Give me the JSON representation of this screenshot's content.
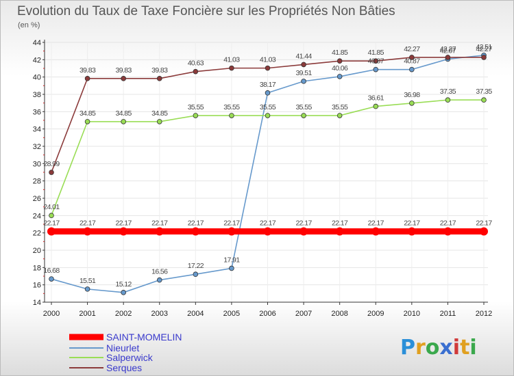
{
  "header": {
    "title": "Evolution du Taux de Taxe Foncière sur les Propriétés Non Bâties",
    "unit": "(en %)"
  },
  "logo": {
    "letters": [
      "P",
      "r",
      "o",
      "x",
      "i",
      "t",
      "i"
    ],
    "colors": [
      "#2a8fd8",
      "#e0a020",
      "#3aa84c",
      "#3a6fd0",
      "#d03a3a",
      "#e0a020",
      "#3aa84c"
    ]
  },
  "chart_data": {
    "type": "line",
    "title": "Evolution du Taux de Taxe Foncière sur les Propriétés Non Bâties",
    "ylabel": "(en %)",
    "xlabel": "",
    "ylim": [
      14,
      44
    ],
    "yticks": [
      14,
      16,
      18,
      20,
      22,
      24,
      26,
      28,
      30,
      32,
      34,
      36,
      38,
      40,
      42,
      44
    ],
    "x": [
      "2000",
      "2001",
      "2002",
      "2003",
      "2004",
      "2005",
      "2006",
      "2007",
      "2008",
      "2009",
      "2010",
      "2011",
      "2012"
    ],
    "legend_position": "bottom-left",
    "series": [
      {
        "name": "SAINT-MOMELIN",
        "color": "#ff0000",
        "labels": [
          "22.17",
          "22.17",
          "22.17",
          "22.17",
          "22.17",
          "22.17",
          "22.17",
          "22.17",
          "22.17",
          "22.17",
          "22.17",
          "22.17",
          "22.17"
        ],
        "values": [
          22.17,
          22.17,
          22.17,
          22.17,
          22.17,
          22.17,
          22.17,
          22.17,
          22.17,
          22.17,
          22.17,
          22.17,
          22.17
        ]
      },
      {
        "name": "Nieurlet",
        "color": "#6699cc",
        "labels": [
          "16.68",
          "15.51",
          "15.12",
          "16.56",
          "17.22",
          "17.91",
          "38.17",
          "39.51",
          "40.06",
          "40.87",
          "40.87",
          "42.07",
          "42.51"
        ],
        "values": [
          16.68,
          15.51,
          15.12,
          16.56,
          17.22,
          17.91,
          38.17,
          39.51,
          40.06,
          40.87,
          40.87,
          42.07,
          42.51
        ]
      },
      {
        "name": "Salperwick",
        "color": "#99dd55",
        "labels": [
          "24.01",
          "34.85",
          "34.85",
          "34.85",
          "35.55",
          "35.55",
          "35.55",
          "35.55",
          "35.55",
          "36.61",
          "36.98",
          "37.35",
          "37.35"
        ],
        "values": [
          24.01,
          34.85,
          34.85,
          34.85,
          35.55,
          35.55,
          35.55,
          35.55,
          35.55,
          36.61,
          36.98,
          37.35,
          37.35
        ]
      },
      {
        "name": "Serques",
        "color": "#8b3a3a",
        "labels": [
          "28.99",
          "39.83",
          "39.83",
          "39.83",
          "40.63",
          "41.03",
          "41.03",
          "41.44",
          "41.85",
          "41.85",
          "42.27",
          "42.27",
          "42.27"
        ],
        "values": [
          28.99,
          39.83,
          39.83,
          39.83,
          40.63,
          41.03,
          41.03,
          41.44,
          41.85,
          41.85,
          42.27,
          42.27,
          42.27
        ]
      }
    ]
  }
}
